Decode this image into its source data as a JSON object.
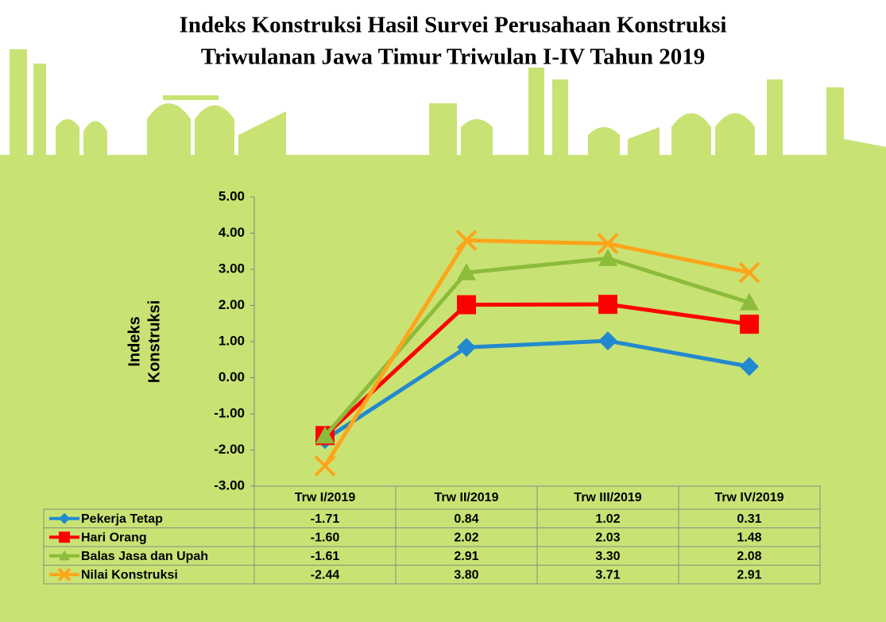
{
  "chart_data": {
    "type": "line",
    "title": [
      "Indeks Konstruksi Hasil Survei Perusahaan Konstruksi",
      "Triwulanan Jawa Timur Triwulan I-IV Tahun 2019"
    ],
    "ylabel": [
      "Indeks",
      "Konstruksi"
    ],
    "categories": [
      "Trw I/2019",
      "Trw II/2019",
      "Trw III/2019",
      "Trw IV/2019"
    ],
    "ylim": [
      -3,
      5
    ],
    "yticks": [
      {
        "value": -3,
        "label": "-3.00"
      },
      {
        "value": -2,
        "label": "-2.00"
      },
      {
        "value": -1,
        "label": "-1.00"
      },
      {
        "value": 0,
        "label": "0.00"
      },
      {
        "value": 1,
        "label": "1.00"
      },
      {
        "value": 2,
        "label": "2.00"
      },
      {
        "value": 3,
        "label": "3.00"
      },
      {
        "value": 4,
        "label": "4.00"
      },
      {
        "value": 5,
        "label": "5.00"
      }
    ],
    "series": [
      {
        "name": "Pekerja Tetap",
        "color": "#2389cf",
        "marker": "diamond",
        "values": [
          -1.71,
          0.84,
          1.02,
          0.31
        ],
        "value_labels": [
          "-1.71",
          "0.84",
          "1.02",
          "0.31"
        ]
      },
      {
        "name": "Hari Orang",
        "color": "#ff0000",
        "marker": "square",
        "values": [
          -1.6,
          2.02,
          2.03,
          1.48
        ],
        "value_labels": [
          "-1.60",
          "2.02",
          "2.03",
          "1.48"
        ]
      },
      {
        "name": "Balas Jasa dan Upah",
        "color": "#8dbb3a",
        "marker": "triangle",
        "values": [
          -1.61,
          2.91,
          3.3,
          2.08
        ],
        "value_labels": [
          "-1.61",
          "2.91",
          "3.30",
          "2.08"
        ]
      },
      {
        "name": "Nilai Konstruksi",
        "color": "#ffa41b",
        "marker": "x",
        "values": [
          -2.44,
          3.8,
          3.71,
          2.91
        ],
        "value_labels": [
          "-2.44",
          "3.80",
          "3.71",
          "2.91"
        ]
      }
    ]
  }
}
